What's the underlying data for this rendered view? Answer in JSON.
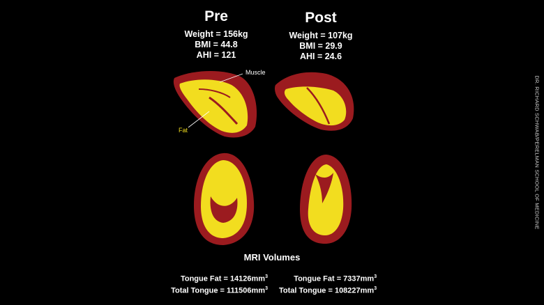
{
  "pre": {
    "heading": "Pre",
    "weight": "Weight = 156kg",
    "bmi": "BMI = 44.8",
    "ahi": "AHI = 121"
  },
  "post": {
    "heading": "Post",
    "weight": "Weight = 107kg",
    "bmi": "BMI = 29.9",
    "ahi": "AHI = 24.6"
  },
  "labels": {
    "muscle": "Muscle",
    "fat": "Fat"
  },
  "mri": {
    "title": "MRI Volumes",
    "pre": {
      "tongue_fat_label": "Tongue Fat = 14126mm",
      "total_tongue_label": "Total Tongue = 111506mm"
    },
    "post": {
      "tongue_fat_label": "Tongue Fat = 7337mm",
      "total_tongue_label": "Total Tongue = 108227mm"
    },
    "unit_superscript": "3"
  },
  "credit": "DR. RICHARD SCHWAB/PERELMAN SCHOOL OF MEDICINE",
  "colors": {
    "background": "#000000",
    "muscle": "#9b1b1f",
    "fat": "#f2dd1f",
    "text": "#ffffff"
  }
}
